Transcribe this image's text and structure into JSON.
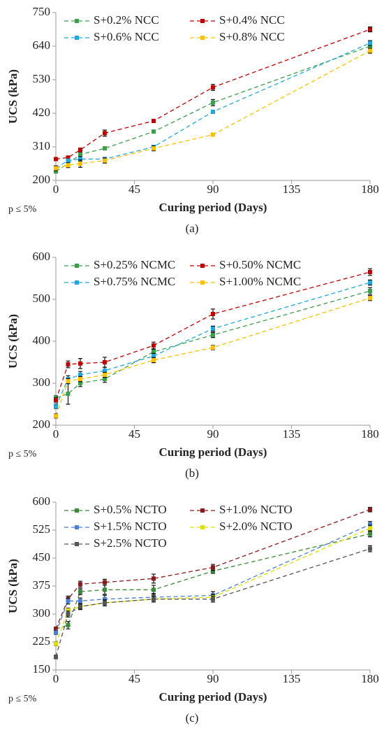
{
  "chart_data": [
    {
      "type": "line",
      "panel_label": "(a)",
      "note": "p ≤ 5%",
      "xlabel": "Curing period (Days)",
      "ylabel": "UCS (kPa)",
      "x": [
        0,
        7,
        14,
        28,
        56,
        90,
        180
      ],
      "xlim": [
        0,
        180
      ],
      "xticks": [
        0,
        45,
        90,
        135,
        180
      ],
      "ylim": [
        200,
        750
      ],
      "yticks": [
        200,
        310,
        420,
        530,
        640,
        750
      ],
      "series": [
        {
          "name": "S+0.2% NCC",
          "color": "#3aa04a",
          "values": [
            230,
            255,
            285,
            305,
            360,
            455,
            640
          ],
          "errors": [
            6,
            5,
            8,
            5,
            5,
            10,
            8
          ]
        },
        {
          "name": "S+0.4% NCC",
          "color": "#c00000",
          "values": [
            270,
            275,
            300,
            355,
            395,
            505,
            695
          ],
          "errors": [
            5,
            5,
            6,
            10,
            5,
            10,
            8
          ]
        },
        {
          "name": "S+0.6% NCC",
          "color": "#1fa8e0",
          "values": [
            240,
            265,
            270,
            270,
            310,
            425,
            650
          ],
          "errors": [
            5,
            5,
            8,
            6,
            5,
            5,
            8
          ]
        },
        {
          "name": "S+0.8% NCC",
          "color": "#ffc000",
          "values": [
            240,
            250,
            255,
            265,
            305,
            350,
            625
          ],
          "errors": [
            8,
            8,
            12,
            8,
            8,
            5,
            8
          ]
        }
      ]
    },
    {
      "type": "line",
      "panel_label": "(b)",
      "note": "p ≤ 5%",
      "xlabel": "Curing period (Days)",
      "ylabel": "UCS (kPa)",
      "x": [
        0,
        7,
        14,
        28,
        56,
        90,
        180
      ],
      "xlim": [
        0,
        180
      ],
      "xticks": [
        0,
        45,
        90,
        135,
        180
      ],
      "ylim": [
        200,
        600
      ],
      "yticks": [
        200,
        300,
        400,
        500,
        600
      ],
      "series": [
        {
          "name": "S+0.25% NCMC",
          "color": "#3aa04a",
          "values": [
            265,
            275,
            300,
            310,
            375,
            415,
            520
          ],
          "errors": [
            5,
            25,
            8,
            8,
            6,
            6,
            8
          ]
        },
        {
          "name": "S+0.50% NCMC",
          "color": "#c00000",
          "values": [
            260,
            345,
            347,
            350,
            390,
            465,
            565
          ],
          "errors": [
            5,
            8,
            12,
            12,
            8,
            12,
            8
          ]
        },
        {
          "name": "S+0.75% NCMC",
          "color": "#1fa8e0",
          "values": [
            245,
            310,
            320,
            330,
            365,
            430,
            540
          ],
          "errors": [
            5,
            8,
            8,
            8,
            6,
            6,
            6
          ]
        },
        {
          "name": "S+1.00% NCMC",
          "color": "#ffc000",
          "values": [
            222,
            305,
            310,
            320,
            355,
            385,
            503
          ],
          "errors": [
            5,
            6,
            6,
            6,
            6,
            5,
            6
          ]
        }
      ]
    },
    {
      "type": "line",
      "panel_label": "(c)",
      "note": "p ≤ 5%",
      "xlabel": "Curing period (Days)",
      "ylabel": "UCS (kPa)",
      "x": [
        0,
        7,
        14,
        28,
        56,
        90,
        180
      ],
      "xlim": [
        0,
        180
      ],
      "xticks": [
        0,
        45,
        90,
        135,
        180
      ],
      "ylim": [
        150,
        600
      ],
      "yticks": [
        150,
        225,
        300,
        375,
        450,
        525,
        600
      ],
      "series": [
        {
          "name": "S+0.5% NCTO",
          "color": "#3a8a3a",
          "values": [
            260,
            270,
            360,
            365,
            365,
            415,
            515
          ],
          "errors": [
            5,
            10,
            8,
            12,
            12,
            6,
            8
          ]
        },
        {
          "name": "S+1.0% NCTO",
          "color": "#8b1a1a",
          "values": [
            260,
            340,
            380,
            385,
            395,
            425,
            580
          ],
          "errors": [
            5,
            8,
            8,
            8,
            12,
            8,
            6
          ]
        },
        {
          "name": "S+1.5% NCTO",
          "color": "#4a7fd6",
          "values": [
            250,
            335,
            335,
            340,
            345,
            350,
            540
          ],
          "errors": [
            5,
            8,
            8,
            10,
            10,
            10,
            8
          ]
        },
        {
          "name": "S+2.0% NCTO",
          "color": "#e0e000",
          "values": [
            220,
            310,
            320,
            330,
            340,
            345,
            530
          ],
          "errors": [
            5,
            6,
            6,
            8,
            8,
            8,
            8
          ]
        },
        {
          "name": "S+2.5% NCTO",
          "color": "#555555",
          "values": [
            185,
            300,
            320,
            330,
            340,
            340,
            475
          ],
          "errors": [
            5,
            8,
            8,
            8,
            8,
            8,
            8
          ]
        }
      ]
    }
  ]
}
